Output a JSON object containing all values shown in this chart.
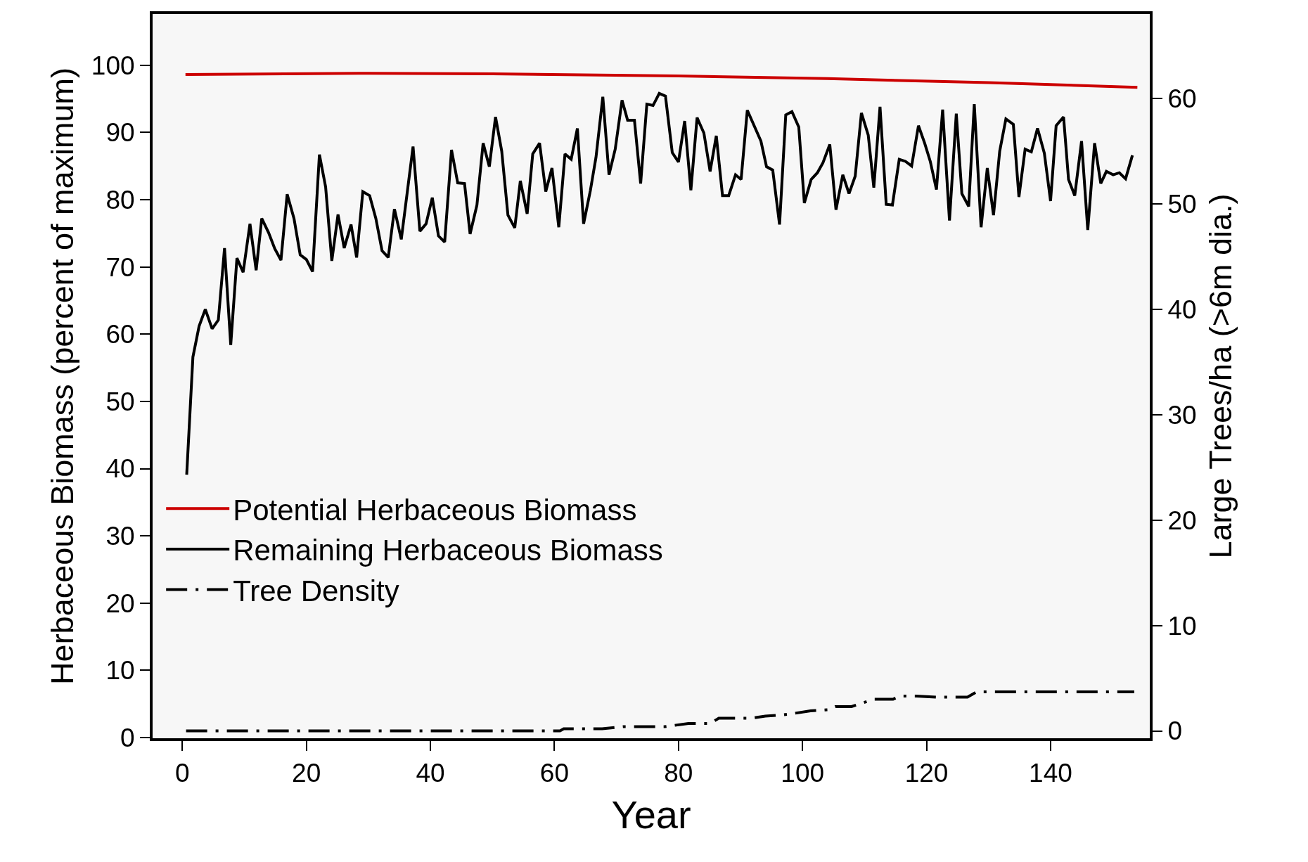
{
  "chart_data": {
    "type": "line",
    "xlabel": "Year",
    "ylabel": "Herbaceous Biomass (percent of maximum)",
    "y2label": "Large Trees/ha (>6m dia.)",
    "xlim": [
      -4.8,
      156
    ],
    "xticks": [
      0,
      20,
      40,
      60,
      80,
      100,
      120,
      140
    ],
    "ylim": [
      -0.1,
      107.6
    ],
    "yticks": [
      0,
      10,
      20,
      30,
      40,
      50,
      60,
      70,
      80,
      90,
      100
    ],
    "y2lim": [
      -0.7,
      68
    ],
    "y2ticks": [
      0,
      10,
      20,
      30,
      40,
      50,
      60
    ],
    "grid": false,
    "legend": "left",
    "marker": "none",
    "series": [
      {
        "name": "Potential Herbaceous Biomass",
        "color": "#cc0000",
        "line_style": "solid",
        "x": [
          0.5,
          30,
          50,
          80,
          104,
          130,
          154
        ],
        "values": [
          98.6,
          98.8,
          98.7,
          98.4,
          98.0,
          97.4,
          96.7
        ]
      },
      {
        "name": "Remaining Herbaceous Biomass",
        "color": "#000000",
        "line_style": "solid",
        "x": [
          0.7,
          1.7,
          2.7,
          3.7,
          4.8,
          5.8,
          6.8,
          7.8,
          8.8,
          9.8,
          10.9,
          11.9,
          12.8,
          13.9,
          14.9,
          15.9,
          16.9,
          18.0,
          19.0,
          20.0,
          21.0,
          22.1,
          23.1,
          24.1,
          25.1,
          26.1,
          27.2,
          28.1,
          29.1,
          30.2,
          31.2,
          32.2,
          33.2,
          34.2,
          35.3,
          37.2,
          38.3,
          39.3,
          40.3,
          41.3,
          42.3,
          43.4,
          44.4,
          45.5,
          46.4,
          47.5,
          48.5,
          49.5,
          50.5,
          51.5,
          52.5,
          53.6,
          54.5,
          55.6,
          56.5,
          57.6,
          58.6,
          59.6,
          60.7,
          61.7,
          62.7,
          63.7,
          64.7,
          65.8,
          66.7,
          67.8,
          68.8,
          69.8,
          70.9,
          71.8,
          72.9,
          73.9,
          74.9,
          75.9,
          76.9,
          77.9,
          79.0,
          80.0,
          81.0,
          82.0,
          83.0,
          84.1,
          85.1,
          86.1,
          87.1,
          88.1,
          89.2,
          90.1,
          91.1,
          92.2,
          93.3,
          94.2,
          95.2,
          96.3,
          97.3,
          98.3,
          99.4,
          100.3,
          101.4,
          102.4,
          103.3,
          104.4,
          105.4,
          106.5,
          107.5,
          108.5,
          109.5,
          110.6,
          111.5,
          112.5,
          113.5,
          114.5,
          115.6,
          116.6,
          117.6,
          118.7,
          119.7,
          120.6,
          121.6,
          122.6,
          123.7,
          124.8,
          125.7,
          126.8,
          127.7,
          128.8,
          129.8,
          130.8,
          131.8,
          132.8,
          134.0,
          134.9,
          135.9,
          136.9,
          137.9,
          139.0,
          140.0,
          140.9,
          142.1,
          142.9,
          143.9,
          145.0,
          146.0,
          147.1,
          148.1,
          149.0,
          150.1,
          151.1,
          152.1,
          153.2
        ],
        "values": [
          39.1,
          56.6,
          61.2,
          63.7,
          60.8,
          62.1,
          72.8,
          58.4,
          71.3,
          69.2,
          76.4,
          69.5,
          77.2,
          75.1,
          72.7,
          71.0,
          80.8,
          77.2,
          71.8,
          71.1,
          69.3,
          86.7,
          81.9,
          70.9,
          77.8,
          72.8,
          76.3,
          71.4,
          81.2,
          80.6,
          77.2,
          72.4,
          71.4,
          78.6,
          74.1,
          87.9,
          75.3,
          76.4,
          80.3,
          74.6,
          73.7,
          87.4,
          82.5,
          82.4,
          74.9,
          79.2,
          88.4,
          84.9,
          92.3,
          87.2,
          77.7,
          75.8,
          82.8,
          77.9,
          86.8,
          88.4,
          81.2,
          84.7,
          75.9,
          86.8,
          86.0,
          90.6,
          76.4,
          81.4,
          86.3,
          95.3,
          83.7,
          87.5,
          94.8,
          91.8,
          91.8,
          82.4,
          94.2,
          94.0,
          95.8,
          95.4,
          87.0,
          85.6,
          91.7,
          81.4,
          92.2,
          89.9,
          84.2,
          89.5,
          80.6,
          80.6,
          83.7,
          83.0,
          93.3,
          91.0,
          88.7,
          84.9,
          84.4,
          76.3,
          92.6,
          93.1,
          90.8,
          79.5,
          83.0,
          84.0,
          85.5,
          88.2,
          78.5,
          83.7,
          80.9,
          83.5,
          92.9,
          89.6,
          81.8,
          93.8,
          79.3,
          79.2,
          86.0,
          85.7,
          85.0,
          91.0,
          88.4,
          85.7,
          81.5,
          93.4,
          76.9,
          92.8,
          80.9,
          79.0,
          94.2,
          75.9,
          84.7,
          77.7,
          87.2,
          92.0,
          91.2,
          80.4,
          87.5,
          87.1,
          90.6,
          86.9,
          79.8,
          91.0,
          92.3,
          83.0,
          80.6,
          88.7,
          75.5,
          88.4,
          82.4,
          84.2,
          83.7,
          84.0,
          83.1,
          86.6
        ]
      },
      {
        "name": "Tree Density",
        "color": "#000000",
        "line_style": "dashdot",
        "axis": "y2",
        "x": [
          0.6,
          60.9,
          61.5,
          67.7,
          71.1,
          77.8,
          81.6,
          85.1,
          86.5,
          91.8,
          94,
          96.5,
          98,
          101.3,
          104.2,
          105.3,
          107.9,
          111.5,
          114.6,
          115.7,
          118.3,
          121.7,
          126.6,
          128.1,
          153.5
        ],
        "values": [
          0,
          0,
          0.2,
          0.2,
          0.4,
          0.4,
          0.7,
          0.7,
          1.2,
          1.2,
          1.4,
          1.5,
          1.6,
          1.9,
          2.0,
          2.3,
          2.3,
          3.0,
          3.0,
          3.3,
          3.3,
          3.2,
          3.2,
          3.7,
          3.7
        ]
      }
    ]
  }
}
